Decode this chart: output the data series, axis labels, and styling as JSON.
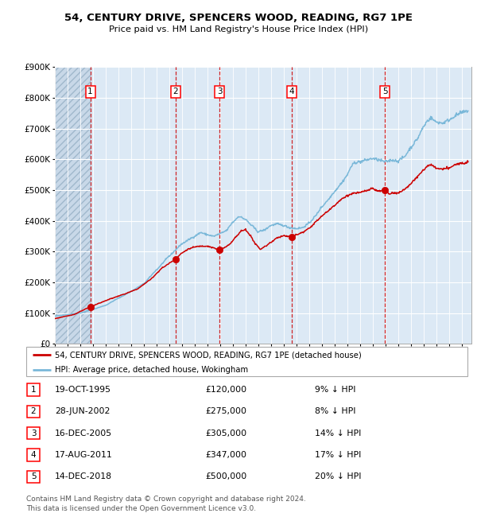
{
  "title": "54, CENTURY DRIVE, SPENCERS WOOD, READING, RG7 1PE",
  "subtitle": "Price paid vs. HM Land Registry's House Price Index (HPI)",
  "legend_line1": "54, CENTURY DRIVE, SPENCERS WOOD, READING, RG7 1PE (detached house)",
  "legend_line2": "HPI: Average price, detached house, Wokingham",
  "footer_line1": "Contains HM Land Registry data © Crown copyright and database right 2024.",
  "footer_line2": "This data is licensed under the Open Government Licence v3.0.",
  "hpi_color": "#7ab8d9",
  "price_color": "#cc0000",
  "background_color": "#dce9f5",
  "grid_color": "#ffffff",
  "vline_color": "#cc0000",
  "ylim": [
    0,
    900000
  ],
  "yticks": [
    0,
    100000,
    200000,
    300000,
    400000,
    500000,
    600000,
    700000,
    800000,
    900000
  ],
  "ytick_labels": [
    "£0",
    "£100K",
    "£200K",
    "£300K",
    "£400K",
    "£500K",
    "£600K",
    "£700K",
    "£800K",
    "£900K"
  ],
  "xlim_start": 1993.0,
  "xlim_end": 2025.75,
  "hatch_end": 1995.79,
  "sales": [
    {
      "num": 1,
      "date_dec": 1995.79,
      "price": 120000
    },
    {
      "num": 2,
      "date_dec": 2002.49,
      "price": 275000
    },
    {
      "num": 3,
      "date_dec": 2005.96,
      "price": 305000
    },
    {
      "num": 4,
      "date_dec": 2011.63,
      "price": 347000
    },
    {
      "num": 5,
      "date_dec": 2018.96,
      "price": 500000
    }
  ],
  "table_rows": [
    {
      "num": 1,
      "date": "19-OCT-1995",
      "price": "£120,000",
      "pct_hpi": "9% ↓ HPI"
    },
    {
      "num": 2,
      "date": "28-JUN-2002",
      "price": "£275,000",
      "pct_hpi": "8% ↓ HPI"
    },
    {
      "num": 3,
      "date": "16-DEC-2005",
      "price": "£305,000",
      "pct_hpi": "14% ↓ HPI"
    },
    {
      "num": 4,
      "date": "17-AUG-2011",
      "price": "£347,000",
      "pct_hpi": "17% ↓ HPI"
    },
    {
      "num": 5,
      "date": "14-DEC-2018",
      "price": "£500,000",
      "pct_hpi": "20% ↓ HPI"
    }
  ]
}
